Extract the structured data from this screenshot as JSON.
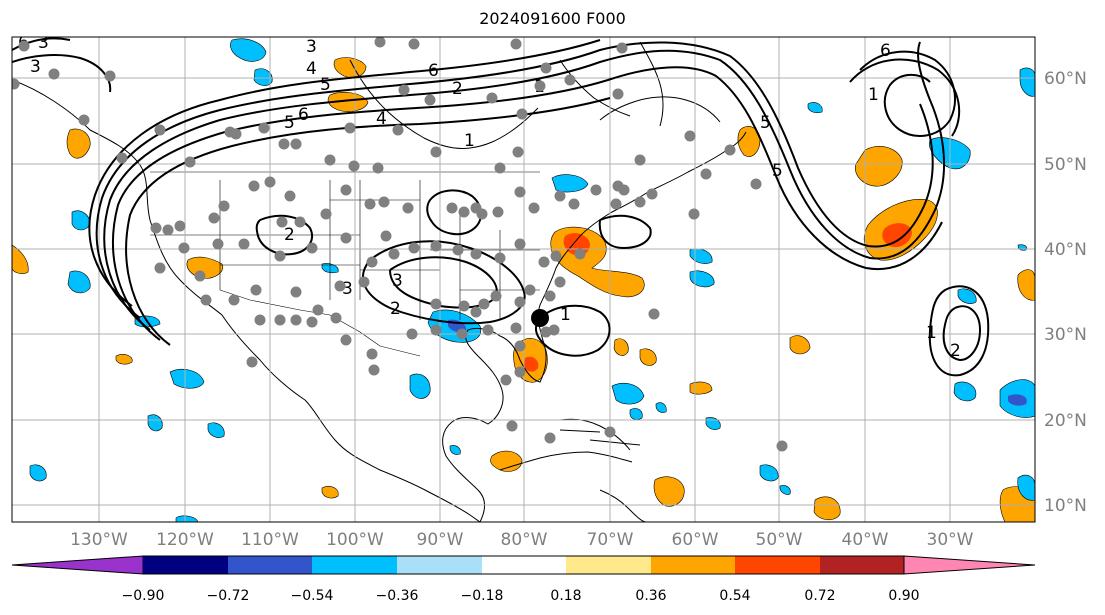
{
  "title": "2024091600 F000",
  "lon_labels": [
    "130°W",
    "120°W",
    "110°W",
    "100°W",
    "90°W",
    "80°W",
    "70°W",
    "60°W",
    "50°W",
    "40°W",
    "30°W"
  ],
  "lat_labels": [
    "60°N",
    "50°N",
    "40°N",
    "30°N",
    "20°N",
    "10°N"
  ],
  "colorbar": {
    "colors": [
      "#9933cc",
      "#000080",
      "#3355cc",
      "#00bfff",
      "#aadff8",
      "#ffffff",
      "#ffe98a",
      "#ffa500",
      "#ff4500",
      "#b22222",
      "#ff85b3"
    ],
    "tick_labels": [
      "−0.90",
      "−0.72",
      "−0.54",
      "−0.36",
      "−0.18",
      "0.18",
      "0.36",
      "0.54",
      "0.72",
      "0.90"
    ]
  },
  "contour_labels": [
    "6",
    "3",
    "3",
    "4",
    "5",
    "6",
    "5",
    "6",
    "4",
    "1",
    "2",
    "3",
    "3",
    "2",
    "1",
    "1",
    "2",
    "5",
    "5",
    "6",
    "1",
    "2",
    "1",
    "3"
  ],
  "storm_marker": "tropical-cyclone-position",
  "colors": {
    "grid": "#b0b0b0",
    "coast": "#000000",
    "contour": "#000000",
    "station": "#808080",
    "label": "#7f7f7f"
  }
}
